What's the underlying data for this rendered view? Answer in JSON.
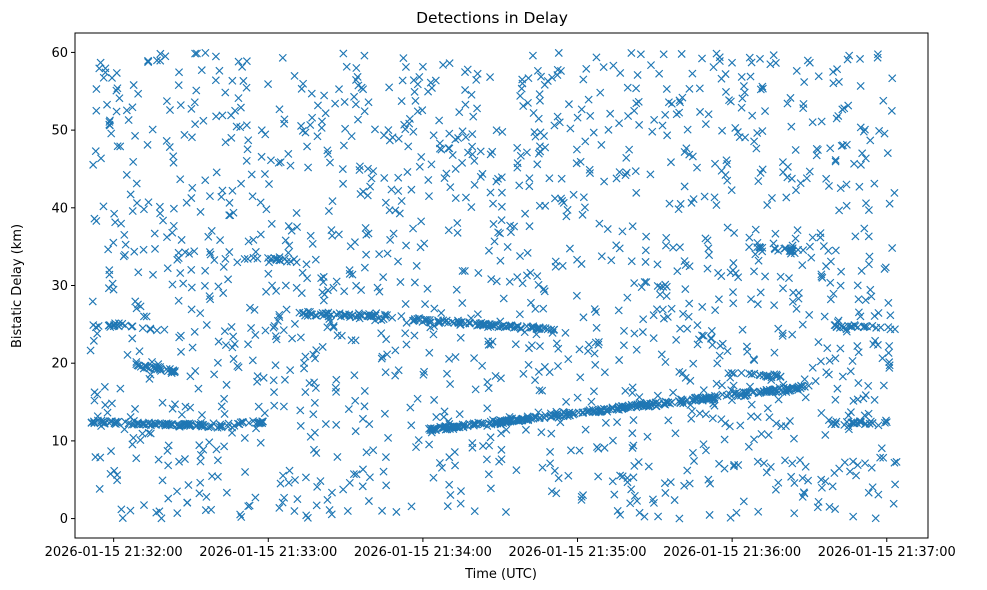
{
  "chart_data": {
    "type": "scatter",
    "title": "Detections in Delay",
    "xlabel": "Time (UTC)",
    "ylabel": "Bistatic Delay (km)",
    "marker": "x",
    "color": "#1f77b4",
    "xlim_seconds": [
      -15,
      316
    ],
    "ylim": [
      -2.5,
      62.5
    ],
    "x_ticks": [
      {
        "seconds": 0,
        "label": "2026-01-15 21:32:00"
      },
      {
        "seconds": 60,
        "label": "2026-01-15 21:33:00"
      },
      {
        "seconds": 120,
        "label": "2026-01-15 21:34:00"
      },
      {
        "seconds": 180,
        "label": "2026-01-15 21:35:00"
      },
      {
        "seconds": 240,
        "label": "2026-01-15 21:36:00"
      },
      {
        "seconds": 300,
        "label": "2026-01-15 21:37:00"
      }
    ],
    "y_ticks": [
      0,
      10,
      20,
      30,
      40,
      50,
      60
    ],
    "x_data_range_seconds": [
      -9,
      304
    ],
    "y_data_range": [
      0,
      60
    ],
    "background_clutter_points": 1500,
    "tracks": [
      {
        "name": "track-a",
        "t_start": -9,
        "t_end": 47,
        "y_start": 12.4,
        "y_end": 11.9,
        "count": 95
      },
      {
        "name": "track-b",
        "t_start": 47,
        "t_end": 60,
        "y_start": 12.2,
        "y_end": 12.4,
        "count": 18
      },
      {
        "name": "track-c",
        "t_start": 8,
        "t_end": 24,
        "y_start": 19.8,
        "y_end": 18.9,
        "count": 30
      },
      {
        "name": "track-d",
        "t_start": 50,
        "t_end": 72,
        "y_start": 33.5,
        "y_end": 33.2,
        "count": 18
      },
      {
        "name": "track-e",
        "t_start": 71,
        "t_end": 112,
        "y_start": 26.4,
        "y_end": 25.9,
        "count": 55
      },
      {
        "name": "track-f",
        "t_start": 116,
        "t_end": 172,
        "y_start": 25.6,
        "y_end": 24.3,
        "count": 95
      },
      {
        "name": "track-g",
        "t_start": 122,
        "t_end": 270,
        "y_start": 11.4,
        "y_end": 17.0,
        "count": 320
      },
      {
        "name": "track-h",
        "t_start": 278,
        "t_end": 302,
        "y_start": 12.2,
        "y_end": 12.4,
        "count": 25
      },
      {
        "name": "track-i",
        "t_start": 279,
        "t_end": 302,
        "y_start": 24.8,
        "y_end": 24.6,
        "count": 22
      },
      {
        "name": "track-j",
        "t_start": 245,
        "t_end": 268,
        "y_start": 35.0,
        "y_end": 34.4,
        "count": 20
      },
      {
        "name": "track-k",
        "t_start": -9,
        "t_end": 8,
        "y_start": 24.8,
        "y_end": 24.9,
        "count": 18
      },
      {
        "name": "track-l",
        "t_start": 238,
        "t_end": 262,
        "y_start": 18.8,
        "y_end": 18.1,
        "count": 18
      }
    ]
  }
}
